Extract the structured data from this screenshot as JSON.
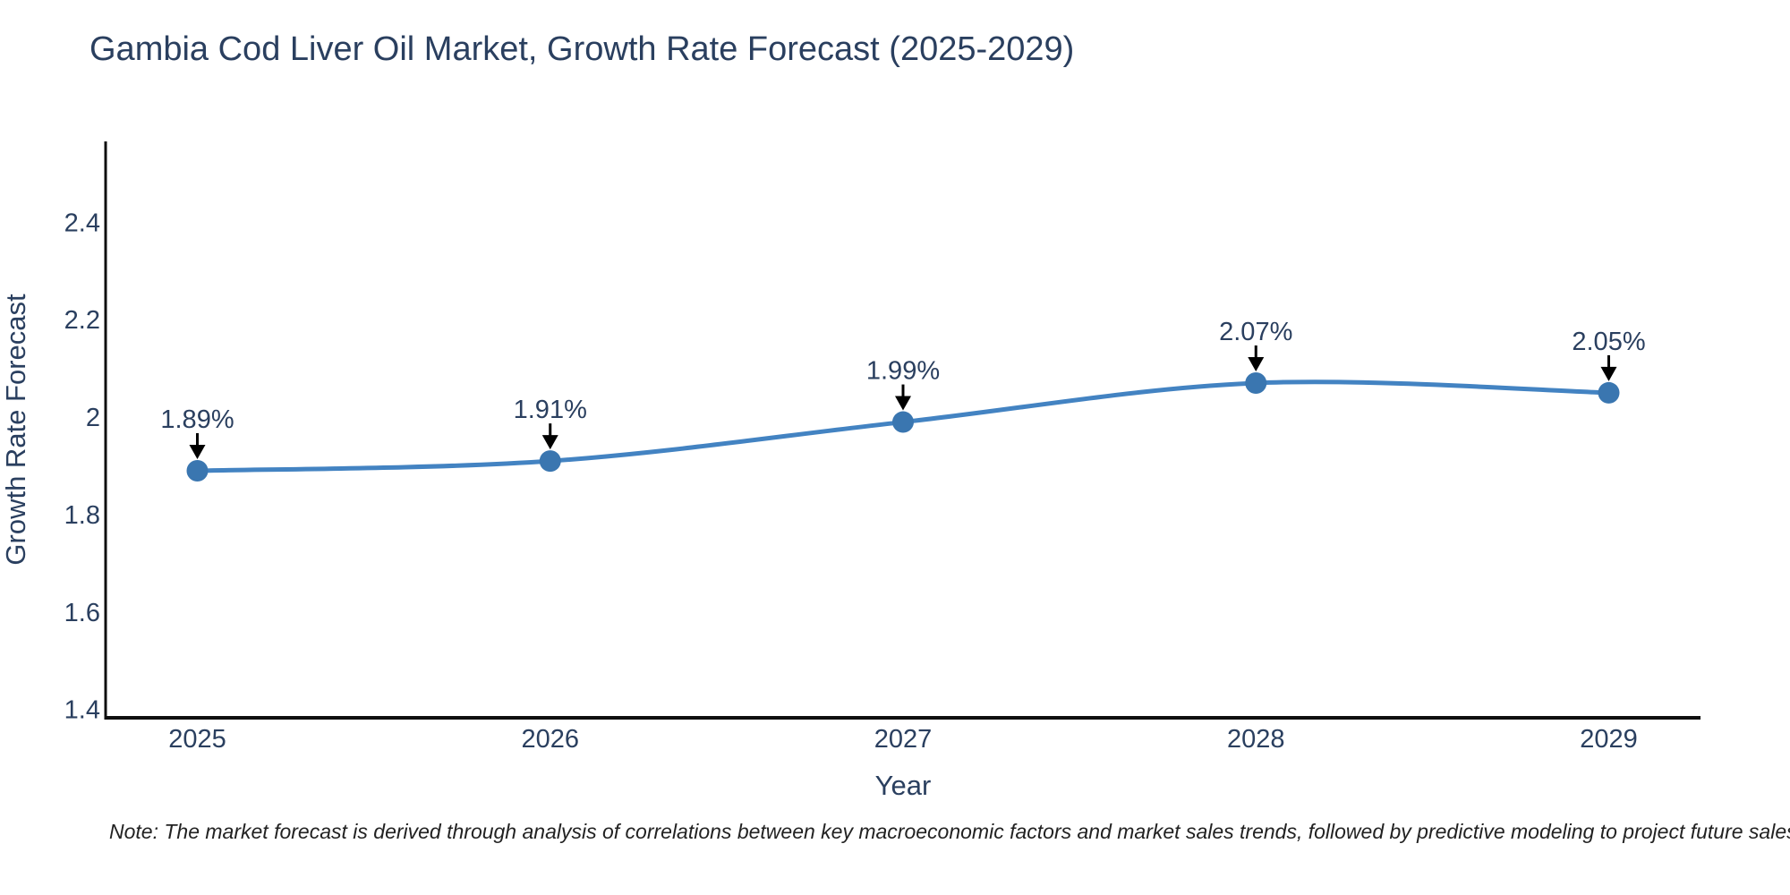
{
  "note": "Note: The market forecast is derived through analysis of correlations between key macroeconomic factors and market sales trends, followed by predictive modeling to project future sales",
  "chart_data": {
    "type": "line",
    "title": "Gambia Cod Liver Oil Market, Growth Rate Forecast (2025-2029)",
    "xlabel": "Year",
    "ylabel": "Growth Rate Forecast",
    "x": [
      2025,
      2026,
      2027,
      2028,
      2029
    ],
    "values": [
      1.89,
      1.91,
      1.99,
      2.07,
      2.05
    ],
    "point_labels": [
      "1.89%",
      "1.91%",
      "1.99%",
      "2.07%",
      "2.05%"
    ],
    "yticks": [
      1.4,
      1.6,
      1.8,
      2,
      2.2,
      2.4
    ],
    "ytick_labels": [
      "1.4",
      "1.6",
      "1.8",
      "2",
      "2.2",
      "2.4"
    ],
    "xtick_labels": [
      "2025",
      "2026",
      "2027",
      "2028",
      "2029"
    ],
    "xlim": [
      2024.74,
      2029.26
    ],
    "ylim": [
      1.383,
      2.566
    ],
    "line_shape": "spline",
    "grid": false,
    "legend": "none",
    "colors": {
      "line": "#4383c2",
      "marker": "#3a76b0",
      "arrow": "#000000",
      "text": "#2a3f5f",
      "axis": "#0f0f0f",
      "note": "#222222",
      "background": "#ffffff"
    }
  }
}
